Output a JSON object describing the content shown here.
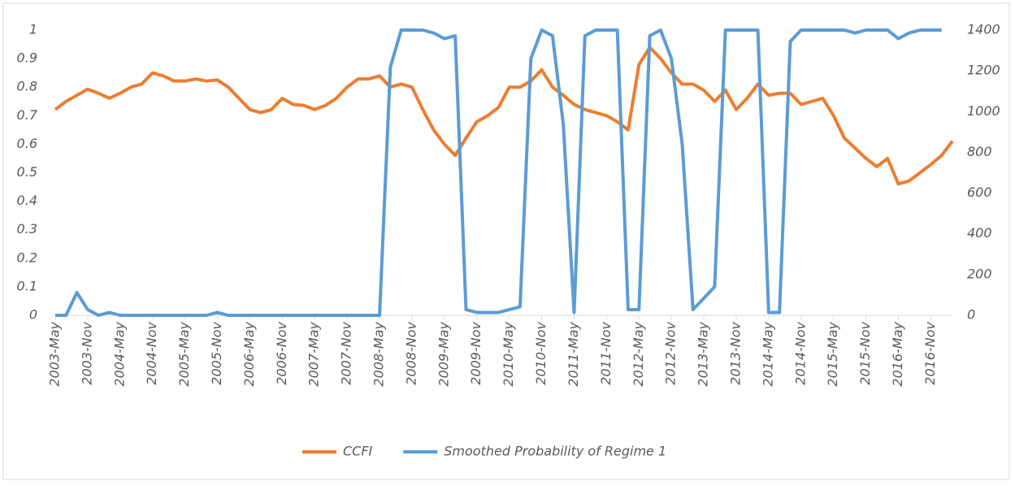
{
  "chart_data": {
    "type": "line",
    "categories": [
      "2003-May",
      null,
      null,
      "2003-Nov",
      null,
      null,
      "2004-May",
      null,
      null,
      "2004-Nov",
      null,
      null,
      "2005-May",
      null,
      null,
      "2005-Nov",
      null,
      null,
      "2006-May",
      null,
      null,
      "2006-Nov",
      null,
      null,
      "2007-May",
      null,
      null,
      "2007-Nov",
      null,
      null,
      "2008-May",
      null,
      null,
      "2008-Nov",
      null,
      null,
      "2009-May",
      null,
      null,
      "2009-Nov",
      null,
      null,
      "2010-May",
      null,
      null,
      "2010-Nov",
      null,
      null,
      "2011-May",
      null,
      null,
      "2011-Nov",
      null,
      null,
      "2012-May",
      null,
      null,
      "2012-Nov",
      null,
      null,
      "2013-May",
      null,
      null,
      "2013-Nov",
      null,
      null,
      "2014-May",
      null,
      null,
      "2014-Nov",
      null,
      null,
      "2015-May",
      null,
      null,
      "2015-Nov",
      null,
      null,
      "2016-May",
      null,
      null,
      "2016-Nov",
      null,
      null
    ],
    "series": [
      {
        "name": "CCFI",
        "color": "#ed7d31",
        "axis": "y2",
        "values": [
          1010,
          1050,
          1080,
          1110,
          1090,
          1065,
          1090,
          1120,
          1135,
          1190,
          1175,
          1150,
          1150,
          1160,
          1150,
          1155,
          1120,
          1065,
          1010,
          995,
          1010,
          1065,
          1035,
          1030,
          1010,
          1030,
          1065,
          1120,
          1160,
          1160,
          1175,
          1120,
          1135,
          1120,
          1010,
          910,
          840,
          785,
          870,
          950,
          980,
          1020,
          1120,
          1120,
          1150,
          1205,
          1120,
          1080,
          1035,
          1010,
          995,
          980,
          950,
          910,
          1230,
          1315,
          1260,
          1190,
          1135,
          1135,
          1105,
          1050,
          1105,
          1010,
          1065,
          1135,
          1080,
          1090,
          1090,
          1035,
          1050,
          1065,
          980,
          870,
          820,
          770,
          730,
          770,
          645,
          660,
          700,
          740,
          785,
          855
        ]
      },
      {
        "name": "Smoothed Probability of Regime 1",
        "color": "#5b9bd5",
        "values": [
          0,
          0,
          0.08,
          0.02,
          0,
          0.01,
          0,
          0,
          0,
          0,
          0,
          0,
          0,
          0,
          0,
          0.01,
          0,
          0,
          0,
          0,
          0,
          0,
          0,
          0,
          0,
          0,
          0,
          0,
          0,
          0,
          0,
          0.87,
          1,
          1,
          1,
          0.99,
          0.97,
          0.98,
          0.02,
          0.01,
          0.01,
          0.01,
          0.02,
          0.03,
          0.9,
          1,
          0.98,
          0.67,
          0.01,
          0.98,
          1,
          1,
          1,
          0.02,
          0.02,
          0.98,
          1,
          0.9,
          0.6,
          0.02,
          0.06,
          0.1,
          1,
          1,
          1,
          1,
          0.01,
          0.01,
          0.96,
          1,
          1,
          1,
          1,
          1,
          0.99,
          1,
          1,
          1,
          0.97,
          0.99,
          1,
          1,
          1,
          null
        ]
      }
    ],
    "ylim": [
      0,
      1
    ],
    "yticks": [
      0,
      0.1,
      0.2,
      0.3,
      0.4,
      0.5,
      0.6,
      0.7,
      0.8,
      0.9,
      1
    ],
    "y2lim": [
      0,
      1400
    ],
    "y2ticks": [
      0,
      200,
      400,
      600,
      800,
      1000,
      1200,
      1400
    ],
    "grid": false,
    "legend": "bottom"
  }
}
